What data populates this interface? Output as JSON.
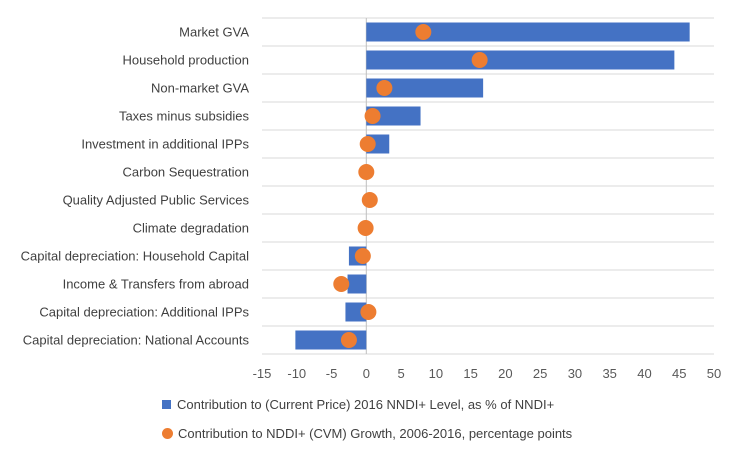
{
  "chart_data": {
    "type": "bar",
    "orientation": "horizontal",
    "categories": [
      "Market GVA",
      "Household production",
      "Non-market GVA",
      "Taxes minus subsidies",
      "Investment in additional IPPs",
      "Carbon Sequestration",
      "Quality Adjusted Public Services",
      "Climate degradation",
      "Capital depreciation: Household Capital",
      "Income & Transfers from abroad",
      "Capital depreciation: Additional IPPs",
      "Capital depreciation: National Accounts"
    ],
    "series": [
      {
        "name": "Contribution to (Current Price) 2016 NNDI+ Level, as % of NNDI+",
        "kind": "bar",
        "color": "#4472C4",
        "values": [
          46.5,
          44.3,
          16.8,
          7.8,
          3.3,
          0,
          0,
          0,
          -2.5,
          -2.7,
          -3.0,
          -10.2
        ]
      },
      {
        "name": "Contribution to NDDI+ (CVM) Growth, 2006-2016, percentage points",
        "kind": "dot",
        "color": "#ED7D31",
        "values": [
          8.2,
          16.3,
          2.6,
          0.9,
          0.2,
          0.0,
          0.5,
          -0.1,
          -0.5,
          -3.6,
          0.3,
          -2.5
        ]
      }
    ],
    "xlim": [
      -15,
      50
    ],
    "xticks": [
      -15,
      -10,
      -5,
      0,
      5,
      10,
      15,
      20,
      25,
      30,
      35,
      40,
      45,
      50
    ],
    "xtick_labels": [
      "-15",
      "-10",
      "-5",
      "0",
      "5",
      "10",
      "15",
      "20",
      "25",
      "30",
      "35",
      "40",
      "45",
      "50"
    ],
    "title": "",
    "xlabel": "",
    "ylabel": "",
    "grid": true,
    "legend_position": "bottom"
  }
}
